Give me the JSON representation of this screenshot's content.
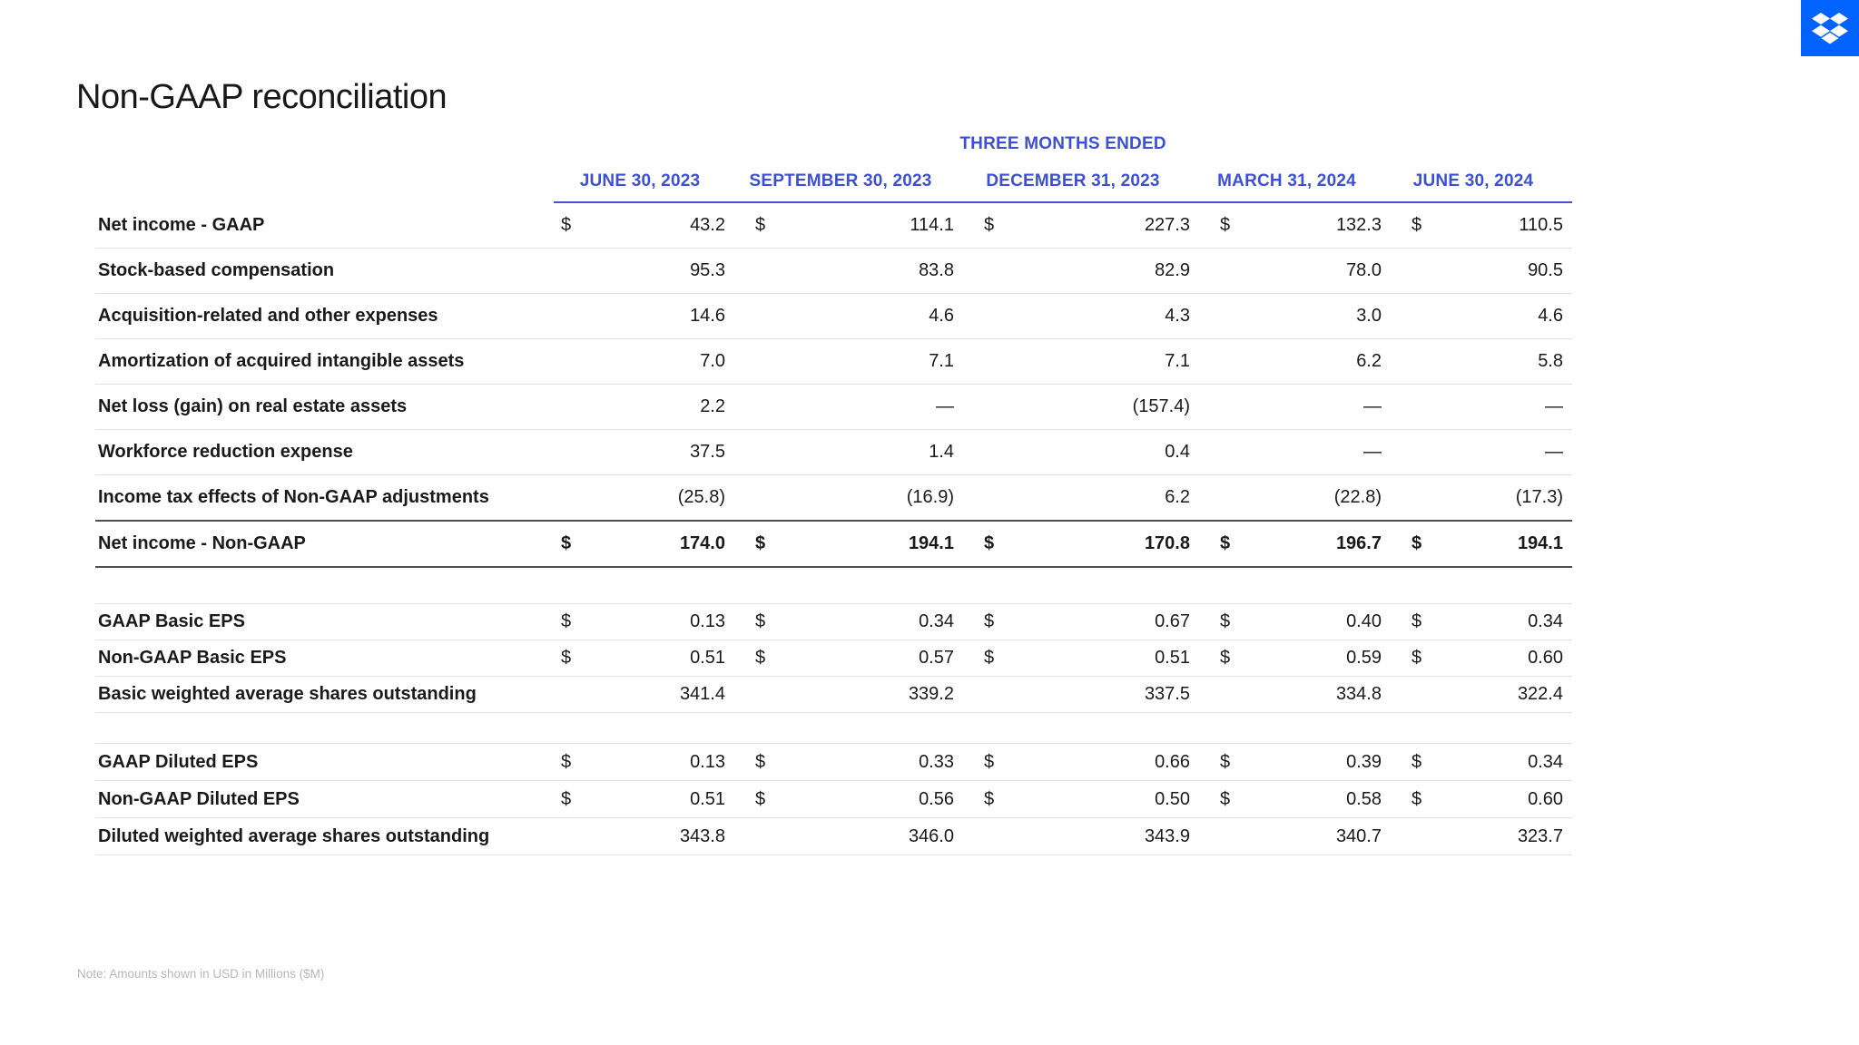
{
  "slide": {
    "title": "Non-GAAP reconciliation",
    "note": "Note: Amounts shown in USD in Millions ($M)",
    "logo_icon": "dropbox-logo"
  },
  "colors": {
    "header_blue": "#3d50d3",
    "logo_blue": "#0062ff",
    "text_dark": "#1a1a1a",
    "rule_light": "#e0e0e0",
    "rule_dark": "#4f4f4f",
    "note_gray": "#b7b7b3"
  },
  "table": {
    "group_header": "THREE MONTHS ENDED",
    "currency_symbol": "$",
    "columns": [
      "JUNE 30, 2023",
      "SEPTEMBER 30, 2023",
      "DECEMBER 31, 2023",
      "MARCH 31, 2024",
      "JUNE 30, 2024"
    ],
    "sections": [
      {
        "rows": [
          {
            "label": "Net income - GAAP",
            "dollar": true,
            "total": false,
            "values": [
              "43.2",
              "114.1",
              "227.3",
              "132.3",
              "110.5"
            ]
          },
          {
            "label": "Stock-based compensation",
            "dollar": false,
            "total": false,
            "values": [
              "95.3",
              "83.8",
              "82.9",
              "78.0",
              "90.5"
            ]
          },
          {
            "label": "Acquisition-related and other expenses",
            "dollar": false,
            "total": false,
            "values": [
              "14.6",
              "4.6",
              "4.3",
              "3.0",
              "4.6"
            ]
          },
          {
            "label": "Amortization of acquired intangible assets",
            "dollar": false,
            "total": false,
            "values": [
              "7.0",
              "7.1",
              "7.1",
              "6.2",
              "5.8"
            ]
          },
          {
            "label": "Net loss (gain) on real estate assets",
            "dollar": false,
            "total": false,
            "values": [
              "2.2",
              "—",
              "(157.4)",
              "—",
              "—"
            ]
          },
          {
            "label": "Workforce reduction expense",
            "dollar": false,
            "total": false,
            "values": [
              "37.5",
              "1.4",
              "0.4",
              "—",
              "—"
            ]
          },
          {
            "label": "Income tax effects of Non-GAAP adjustments",
            "dollar": false,
            "total": false,
            "values": [
              "(25.8)",
              "(16.9)",
              "6.2",
              "(22.8)",
              "(17.3)"
            ]
          },
          {
            "label": "Net income - Non-GAAP",
            "dollar": true,
            "total": true,
            "values": [
              "174.0",
              "194.1",
              "170.8",
              "196.7",
              "194.1"
            ]
          }
        ]
      },
      {
        "rows": [
          {
            "label": "GAAP Basic EPS",
            "dollar": true,
            "total": false,
            "values": [
              "0.13",
              "0.34",
              "0.67",
              "0.40",
              "0.34"
            ]
          },
          {
            "label": "Non-GAAP Basic EPS",
            "dollar": true,
            "total": false,
            "values": [
              "0.51",
              "0.57",
              "0.51",
              "0.59",
              "0.60"
            ]
          },
          {
            "label": "Basic weighted average shares outstanding",
            "dollar": false,
            "total": false,
            "values": [
              "341.4",
              "339.2",
              "337.5",
              "334.8",
              "322.4"
            ]
          }
        ]
      },
      {
        "rows": [
          {
            "label": "GAAP Diluted EPS",
            "dollar": true,
            "total": false,
            "values": [
              "0.13",
              "0.33",
              "0.66",
              "0.39",
              "0.34"
            ]
          },
          {
            "label": "Non-GAAP Diluted EPS",
            "dollar": true,
            "total": false,
            "values": [
              "0.51",
              "0.56",
              "0.50",
              "0.58",
              "0.60"
            ]
          },
          {
            "label": "Diluted weighted average shares outstanding",
            "dollar": false,
            "total": false,
            "values": [
              "343.8",
              "346.0",
              "343.9",
              "340.7",
              "323.7"
            ]
          }
        ]
      }
    ]
  }
}
